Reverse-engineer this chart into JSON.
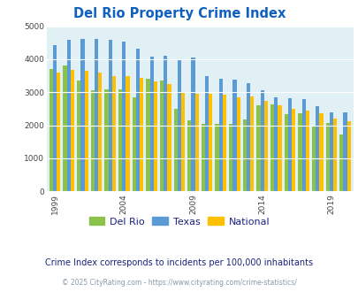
{
  "title": "Del Rio Property Crime Index",
  "subtitle": "Crime Index corresponds to incidents per 100,000 inhabitants",
  "footer": "© 2025 CityRating.com - https://www.cityrating.com/crime-statistics/",
  "years": [
    1999,
    2000,
    2001,
    2002,
    2003,
    2004,
    2005,
    2006,
    2007,
    2008,
    2009,
    2010,
    2011,
    2012,
    2013,
    2014,
    2015,
    2016,
    2017,
    2018,
    2019,
    2020
  ],
  "del_rio": [
    3700,
    3800,
    3350,
    3050,
    3100,
    3100,
    2850,
    3400,
    3350,
    2500,
    2150,
    2030,
    2050,
    2050,
    2180,
    2600,
    2620,
    2350,
    2370,
    1970,
    2080,
    1720
  ],
  "texas": [
    4430,
    4580,
    4620,
    4620,
    4600,
    4530,
    4310,
    4070,
    4100,
    4000,
    4040,
    3490,
    3400,
    3390,
    3270,
    3050,
    2840,
    2820,
    2780,
    2570,
    2400,
    2400
  ],
  "national": [
    3600,
    3680,
    3650,
    3600,
    3490,
    3490,
    3430,
    3330,
    3250,
    3020,
    2960,
    2950,
    2920,
    2860,
    2870,
    2730,
    2600,
    2490,
    2450,
    2360,
    2200,
    2120
  ],
  "del_rio_color": "#8bc34a",
  "texas_color": "#5b9bd5",
  "national_color": "#ffc000",
  "bg_color": "#e0f0f5",
  "title_color": "#1060c0",
  "ylim": [
    0,
    5000
  ],
  "yticks": [
    0,
    1000,
    2000,
    3000,
    4000,
    5000
  ],
  "xtick_years": [
    1999,
    2004,
    2009,
    2014,
    2019
  ],
  "legend_labels": [
    "Del Rio",
    "Texas",
    "National"
  ],
  "subtitle_color": "#1a237e",
  "footer_color": "#8899aa",
  "grid_color": "#ffffff"
}
